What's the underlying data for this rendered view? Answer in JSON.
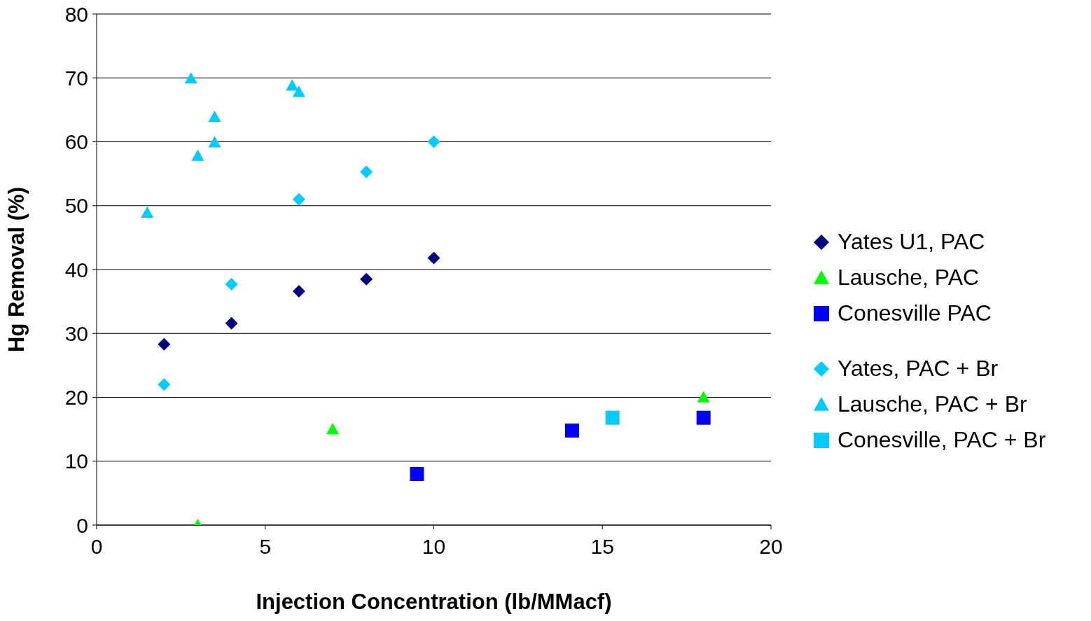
{
  "chart_data": {
    "type": "scatter",
    "xlabel": "Injection Concentration (lb/MMacf)",
    "ylabel": "Hg Removal (%)",
    "xlim": [
      0,
      20
    ],
    "xticks": [
      0,
      5,
      10,
      15,
      20
    ],
    "ylim": [
      0,
      80
    ],
    "yticks": [
      0,
      10,
      20,
      30,
      40,
      50,
      60,
      70,
      80
    ],
    "grid": "y",
    "legend": "right",
    "series": [
      {
        "name": "Yates U1, PAC",
        "color": "#000080",
        "marker": "diamond",
        "x": [
          2,
          4,
          6,
          8,
          10
        ],
        "values": [
          28.3,
          31.6,
          36.6,
          38.5,
          41.8
        ]
      },
      {
        "name": "Lausche, PAC",
        "color": "#00ff00",
        "marker": "triangle",
        "x": [
          3,
          7,
          18
        ],
        "values": [
          0,
          15,
          20
        ]
      },
      {
        "name": "Conesville PAC",
        "color": "#0000ff",
        "marker": "square",
        "x": [
          9.5,
          14.1,
          18
        ],
        "values": [
          8,
          14.8,
          16.8
        ]
      },
      {
        "name": "Yates, PAC + Br",
        "color": "#00ccff",
        "marker": "diamond",
        "x": [
          2,
          4,
          6,
          8,
          10
        ],
        "values": [
          22,
          37.7,
          51,
          55.3,
          60
        ]
      },
      {
        "name": "Lausche, PAC + Br",
        "color": "#00ccff",
        "marker": "triangle",
        "x": [
          1.5,
          2.8,
          3,
          3.5,
          3.5,
          5.8,
          6
        ],
        "values": [
          48.9,
          69.9,
          57.8,
          63.9,
          59.9,
          68.8,
          67.8
        ]
      },
      {
        "name": "Conesville, PAC + Br",
        "color": "#00ccff",
        "marker": "square",
        "x": [
          15.3
        ],
        "values": [
          16.8
        ]
      }
    ]
  }
}
